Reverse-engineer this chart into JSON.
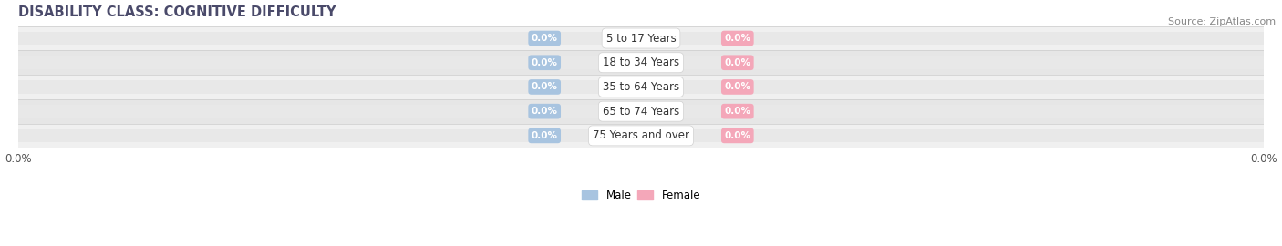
{
  "title": "DISABILITY CLASS: COGNITIVE DIFFICULTY",
  "source": "Source: ZipAtlas.com",
  "categories": [
    "5 to 17 Years",
    "18 to 34 Years",
    "35 to 64 Years",
    "65 to 74 Years",
    "75 Years and over"
  ],
  "male_values": [
    0.0,
    0.0,
    0.0,
    0.0,
    0.0
  ],
  "female_values": [
    0.0,
    0.0,
    0.0,
    0.0,
    0.0
  ],
  "male_color": "#a8c4e0",
  "female_color": "#f4a7b9",
  "bar_bg_color": "#e8e8e8",
  "row_bg_colors": [
    "#f0f0f0",
    "#e6e6e6"
  ],
  "title_color": "#4a4a6a",
  "source_color": "#888888",
  "center_label_color": "#333333",
  "title_fontsize": 10.5,
  "source_fontsize": 8,
  "bar_height": 0.55,
  "xlim": [
    -1.0,
    1.0
  ],
  "figsize": [
    14.06,
    2.7
  ],
  "dpi": 100
}
